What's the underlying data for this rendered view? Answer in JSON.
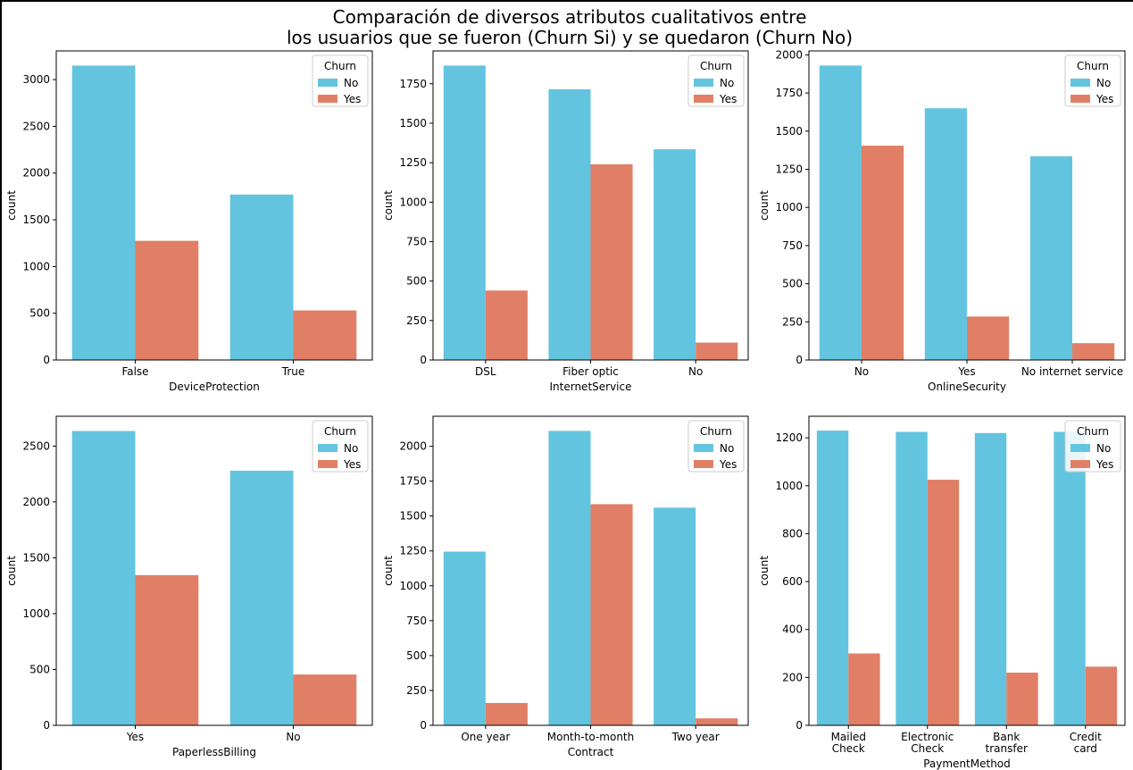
{
  "figure": {
    "title": "Comparación de diversos atributos cualitativos entre\nlos usuarios que se fueron (Churn Si) y se quedaron (Churn No)"
  },
  "colors": {
    "No": "#63C4DF",
    "Yes": "#E07F66"
  },
  "chart_data": [
    {
      "type": "bar",
      "categories": [
        "False",
        "True"
      ],
      "series": [
        {
          "name": "No",
          "values": [
            3150,
            1770
          ]
        },
        {
          "name": "Yes",
          "values": [
            1275,
            530
          ]
        }
      ],
      "xlabel": "DeviceProtection",
      "ylabel": "count",
      "ylim": [
        0,
        3307
      ],
      "yticks": [
        0,
        500,
        1000,
        1500,
        2000,
        2500,
        3000
      ],
      "legend": {
        "title": "Churn",
        "placement": "top-right"
      },
      "grid": false
    },
    {
      "type": "bar",
      "categories": [
        "DSL",
        "Fiber optic",
        "No"
      ],
      "series": [
        {
          "name": "No",
          "values": [
            1865,
            1715,
            1335
          ]
        },
        {
          "name": "Yes",
          "values": [
            440,
            1240,
            110
          ]
        }
      ],
      "xlabel": "InternetService",
      "ylabel": "count",
      "ylim": [
        0,
        1958
      ],
      "yticks": [
        0,
        250,
        500,
        750,
        1000,
        1250,
        1500,
        1750
      ],
      "legend": {
        "title": "Churn",
        "placement": "top-right"
      },
      "grid": false
    },
    {
      "type": "bar",
      "categories": [
        "No",
        "Yes",
        "No internet service"
      ],
      "series": [
        {
          "name": "No",
          "values": [
            1930,
            1650,
            1335
          ]
        },
        {
          "name": "Yes",
          "values": [
            1405,
            285,
            110
          ]
        }
      ],
      "xlabel": "OnlineSecurity",
      "ylabel": "count",
      "ylim": [
        0,
        2026
      ],
      "yticks": [
        0,
        250,
        500,
        750,
        1000,
        1250,
        1500,
        1750,
        2000
      ],
      "legend": {
        "title": "Churn",
        "placement": "top-right"
      },
      "grid": false
    },
    {
      "type": "bar",
      "categories": [
        "Yes",
        "No"
      ],
      "series": [
        {
          "name": "No",
          "values": [
            2635,
            2280
          ]
        },
        {
          "name": "Yes",
          "values": [
            1345,
            455
          ]
        }
      ],
      "xlabel": "PaperlessBilling",
      "ylabel": "count",
      "ylim": [
        0,
        2767
      ],
      "yticks": [
        0,
        500,
        1000,
        1500,
        2000,
        2500
      ],
      "legend": {
        "title": "Churn",
        "placement": "top-right"
      },
      "grid": false
    },
    {
      "type": "bar",
      "categories": [
        "One year",
        "Month-to-month",
        "Two year"
      ],
      "series": [
        {
          "name": "No",
          "values": [
            1245,
            2110,
            1560
          ]
        },
        {
          "name": "Yes",
          "values": [
            160,
            1585,
            50
          ]
        }
      ],
      "xlabel": "Contract",
      "ylabel": "count",
      "ylim": [
        0,
        2215
      ],
      "yticks": [
        0,
        250,
        500,
        750,
        1000,
        1250,
        1500,
        1750,
        2000
      ],
      "legend": {
        "title": "Churn",
        "placement": "top-right"
      },
      "grid": false
    },
    {
      "type": "bar",
      "categories": [
        "Mailed\nCheck",
        "Electronic\nCheck",
        "Bank\ntransfer",
        "Credit\ncard"
      ],
      "series": [
        {
          "name": "No",
          "values": [
            1230,
            1225,
            1220,
            1225
          ]
        },
        {
          "name": "Yes",
          "values": [
            300,
            1025,
            220,
            245
          ]
        }
      ],
      "xlabel": "PaymentMethod",
      "ylabel": "count",
      "ylim": [
        0,
        1290
      ],
      "yticks": [
        0,
        200,
        400,
        600,
        800,
        1000,
        1200
      ],
      "legend": {
        "title": "Churn",
        "placement": "top-right"
      },
      "grid": false
    }
  ]
}
